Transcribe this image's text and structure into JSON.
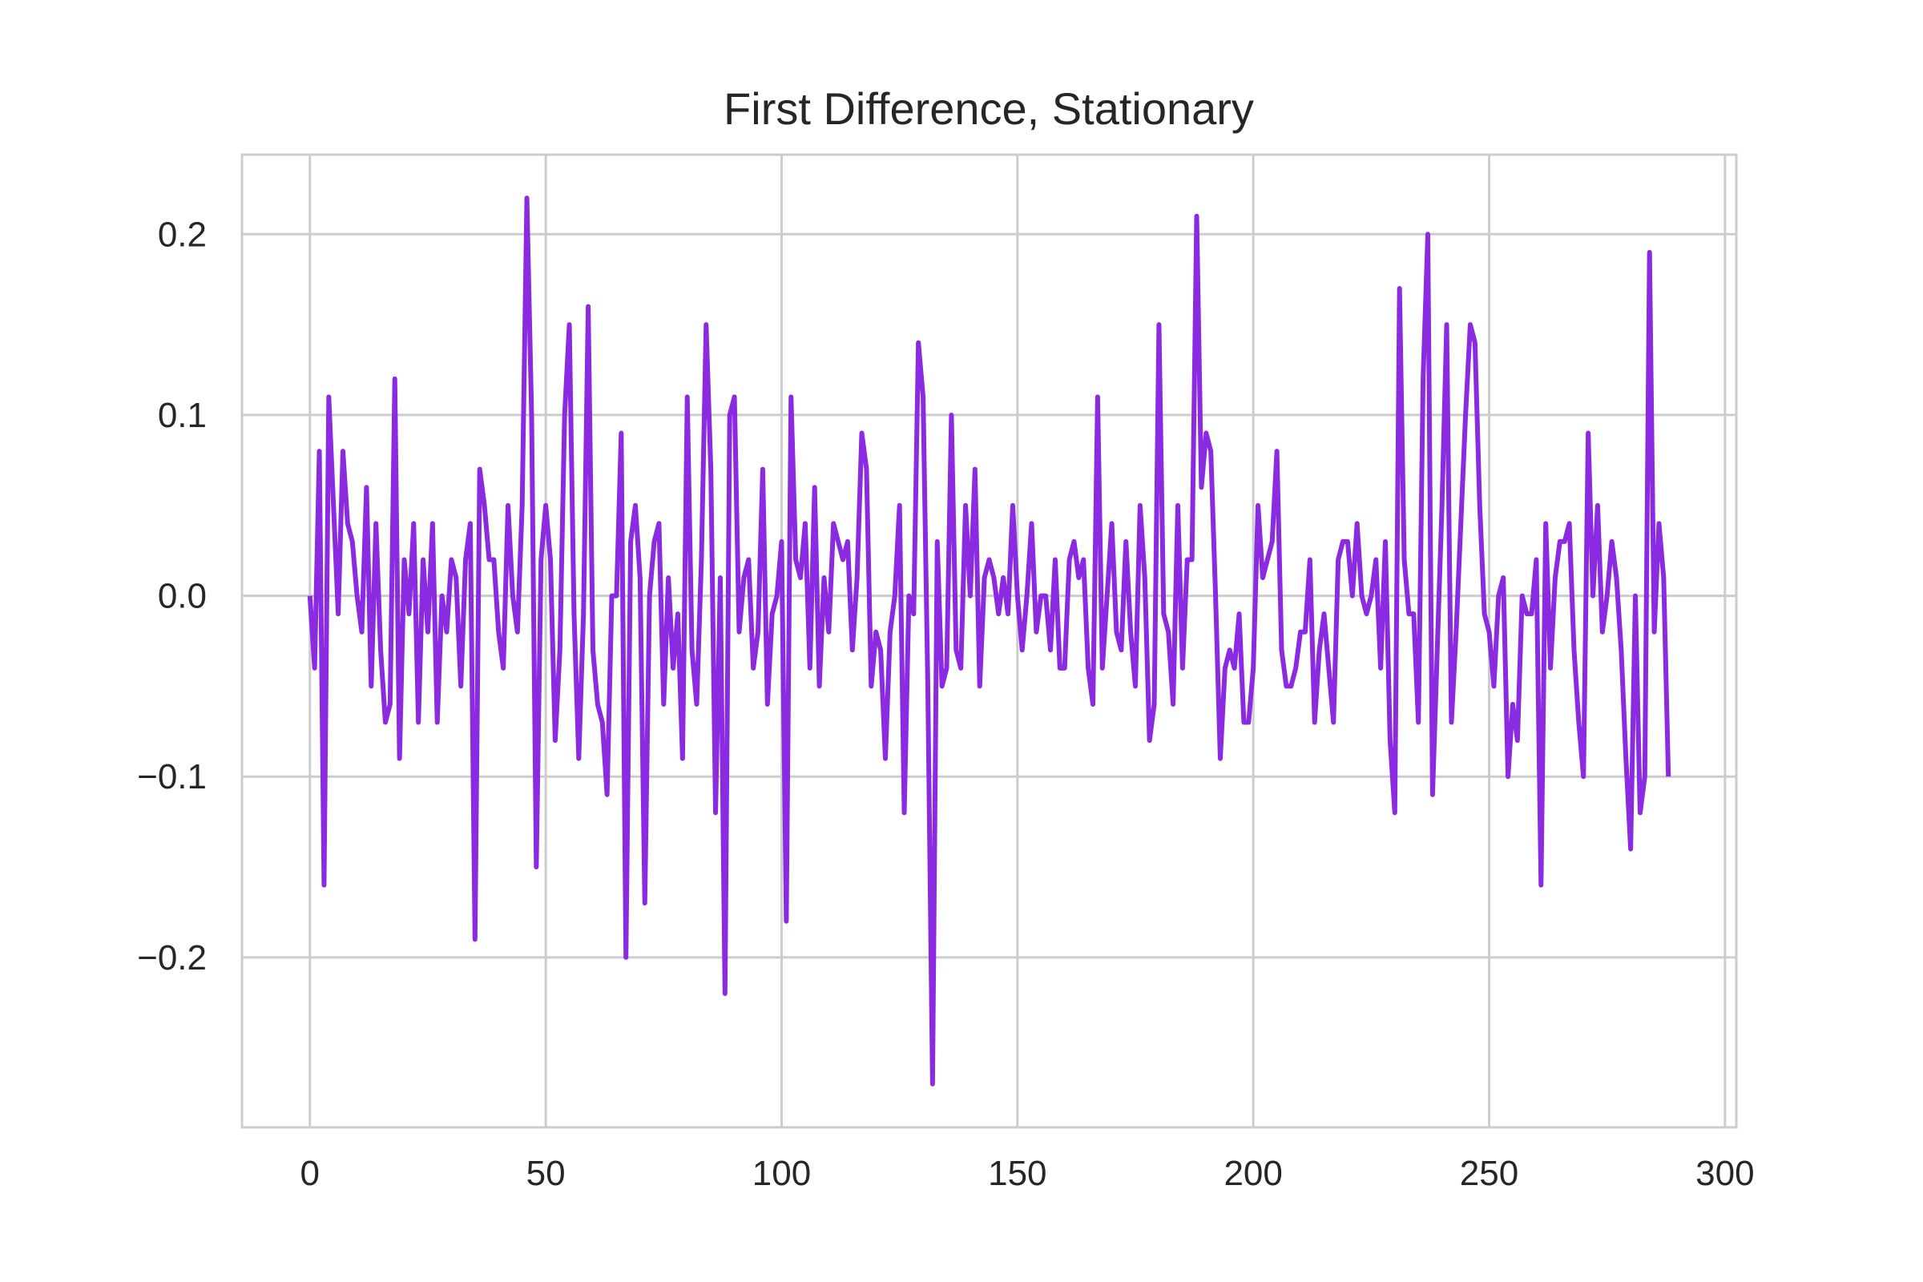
{
  "chart_data": {
    "type": "line",
    "title": "First Difference, Stationary",
    "xlabel": "",
    "ylabel": "",
    "xlim": [
      -14.4,
      302.4
    ],
    "ylim": [
      -0.294,
      0.244
    ],
    "x_ticks": [
      0,
      50,
      100,
      150,
      200,
      250,
      300
    ],
    "x_tick_labels": [
      "0",
      "50",
      "100",
      "150",
      "200",
      "250",
      "300"
    ],
    "y_ticks": [
      -0.2,
      -0.1,
      0.0,
      0.1,
      0.2
    ],
    "y_tick_labels": [
      "−0.2",
      "−0.1",
      "0.0",
      "0.1",
      "0.2"
    ],
    "grid": true,
    "series": [
      {
        "color": "#8a2be2",
        "x_start": 0,
        "x_step": 1,
        "values": [
          0.0,
          -0.04,
          0.08,
          -0.16,
          0.11,
          0.05,
          -0.01,
          0.08,
          0.04,
          0.03,
          0.0,
          -0.02,
          0.06,
          -0.05,
          0.04,
          -0.03,
          -0.07,
          -0.06,
          0.12,
          -0.09,
          0.02,
          -0.01,
          0.04,
          -0.07,
          0.02,
          -0.02,
          0.04,
          -0.07,
          0.0,
          -0.02,
          0.02,
          0.01,
          -0.05,
          0.02,
          0.04,
          -0.19,
          0.07,
          0.05,
          0.02,
          0.02,
          -0.02,
          -0.04,
          0.05,
          0.0,
          -0.02,
          0.05,
          0.22,
          0.1,
          -0.15,
          0.02,
          0.05,
          0.02,
          -0.08,
          -0.03,
          0.1,
          0.15,
          -0.01,
          -0.09,
          -0.01,
          0.16,
          -0.03,
          -0.06,
          -0.07,
          -0.11,
          0.0,
          0.0,
          0.09,
          -0.2,
          0.03,
          0.05,
          0.01,
          -0.17,
          0.0,
          0.03,
          0.04,
          -0.06,
          0.01,
          -0.04,
          -0.01,
          -0.09,
          0.11,
          -0.03,
          -0.06,
          0.02,
          0.15,
          0.07,
          -0.12,
          0.01,
          -0.22,
          0.1,
          0.11,
          -0.02,
          0.01,
          0.02,
          -0.04,
          -0.02,
          0.07,
          -0.06,
          -0.01,
          0.0,
          0.03,
          -0.18,
          0.11,
          0.02,
          0.01,
          0.04,
          -0.04,
          0.06,
          -0.05,
          0.01,
          -0.02,
          0.04,
          0.03,
          0.02,
          0.03,
          -0.03,
          0.01,
          0.09,
          0.07,
          -0.05,
          -0.02,
          -0.03,
          -0.09,
          -0.02,
          0.0,
          0.05,
          -0.12,
          0.0,
          -0.01,
          0.14,
          0.11,
          -0.05,
          -0.27,
          0.03,
          -0.05,
          -0.04,
          0.1,
          -0.03,
          -0.04,
          0.05,
          0.0,
          0.07,
          -0.05,
          0.01,
          0.02,
          0.01,
          -0.01,
          0.01,
          -0.01,
          0.05,
          0.0,
          -0.03,
          0.0,
          0.04,
          -0.02,
          0.0,
          0.0,
          -0.03,
          0.02,
          -0.04,
          -0.04,
          0.02,
          0.03,
          0.01,
          0.02,
          -0.04,
          -0.06,
          0.11,
          -0.04,
          0.0,
          0.04,
          -0.02,
          -0.03,
          0.03,
          -0.02,
          -0.05,
          0.05,
          0.01,
          -0.08,
          -0.06,
          0.15,
          -0.01,
          -0.02,
          -0.06,
          0.05,
          -0.04,
          0.02,
          0.02,
          0.21,
          0.06,
          0.09,
          0.08,
          0.0,
          -0.09,
          -0.04,
          -0.03,
          -0.04,
          -0.01,
          -0.07,
          -0.07,
          -0.04,
          0.05,
          0.01,
          0.02,
          0.03,
          0.08,
          -0.03,
          -0.05,
          -0.05,
          -0.04,
          -0.02,
          -0.02,
          0.02,
          -0.07,
          -0.03,
          -0.01,
          -0.04,
          -0.07,
          0.02,
          0.03,
          0.03,
          0.0,
          0.04,
          0.0,
          -0.01,
          0.0,
          0.02,
          -0.04,
          0.03,
          -0.08,
          -0.12,
          0.17,
          0.02,
          -0.01,
          -0.01,
          -0.07,
          0.12,
          0.2,
          -0.11,
          -0.03,
          0.05,
          0.15,
          -0.07,
          -0.02,
          0.04,
          0.1,
          0.15,
          0.14,
          0.05,
          -0.01,
          -0.02,
          -0.05,
          0.0,
          0.01,
          -0.1,
          -0.06,
          -0.08,
          0.0,
          -0.01,
          -0.01,
          0.02,
          -0.16,
          0.04,
          -0.04,
          0.01,
          0.03,
          0.03,
          0.04,
          -0.03,
          -0.07,
          -0.1,
          0.09,
          0.0,
          0.05,
          -0.02,
          0.0,
          0.03,
          0.01,
          -0.03,
          -0.09,
          -0.14,
          0.0,
          -0.12,
          -0.1,
          0.19,
          -0.02,
          0.04,
          0.01,
          -0.1
        ]
      }
    ]
  }
}
